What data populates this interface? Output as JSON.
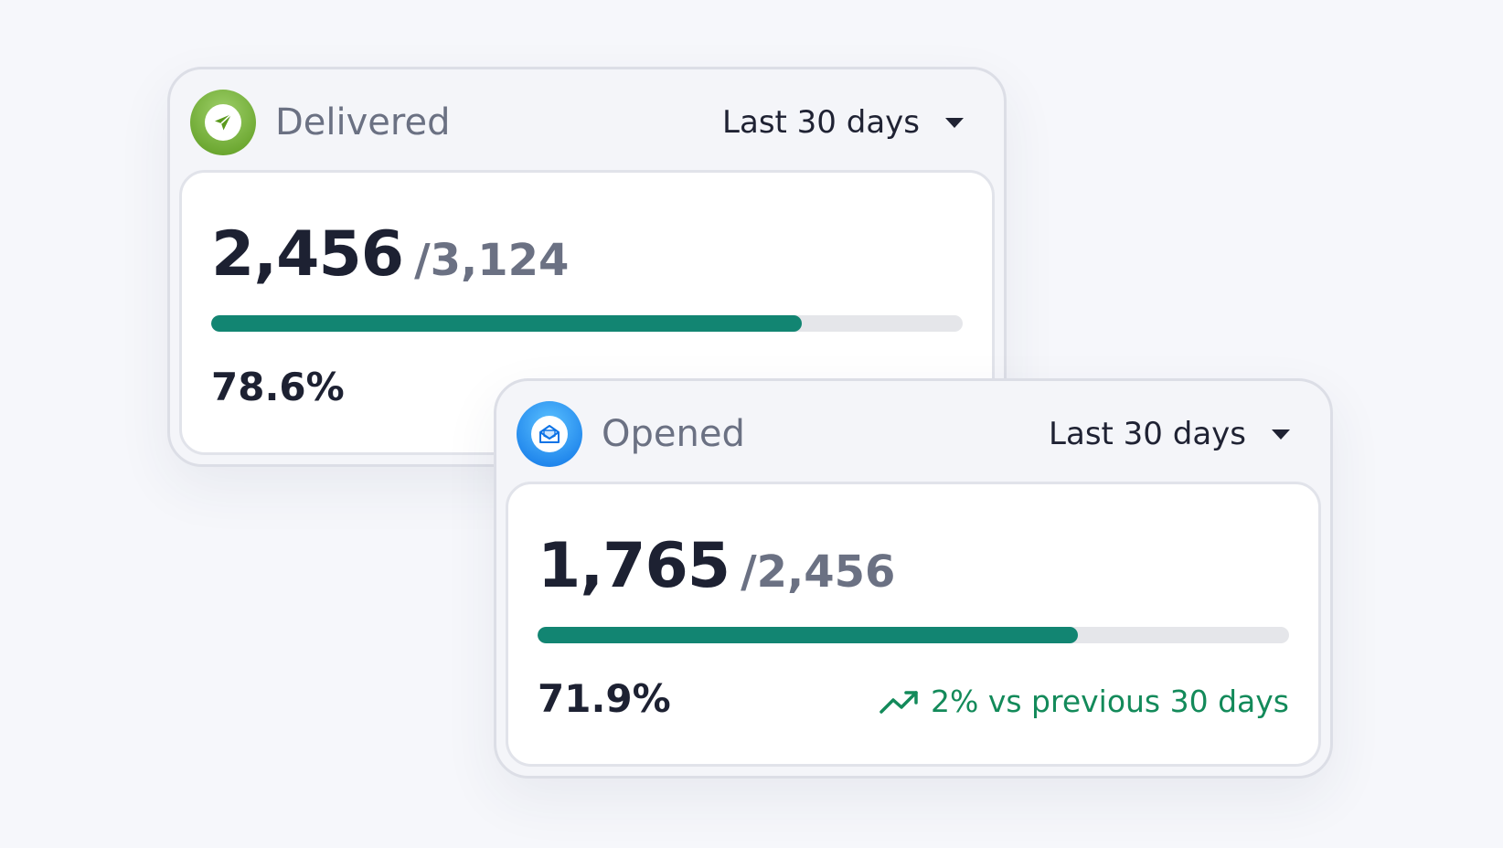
{
  "cards": [
    {
      "title": "Delivered",
      "icon": "paper-plane-icon",
      "range": "Last 30 days",
      "value": "2,456",
      "total": "/3,124",
      "progress_percent": 78.6,
      "percent_label": "78.6%",
      "accent": "#128572"
    },
    {
      "title": "Opened",
      "icon": "open-envelope-icon",
      "range": "Last 30 days",
      "value": "1,765",
      "total": "/2,456",
      "progress_percent": 71.9,
      "percent_label": "71.9%",
      "trend": "2% vs previous 30 days",
      "trend_color": "#138a5a",
      "accent": "#128572"
    }
  ]
}
